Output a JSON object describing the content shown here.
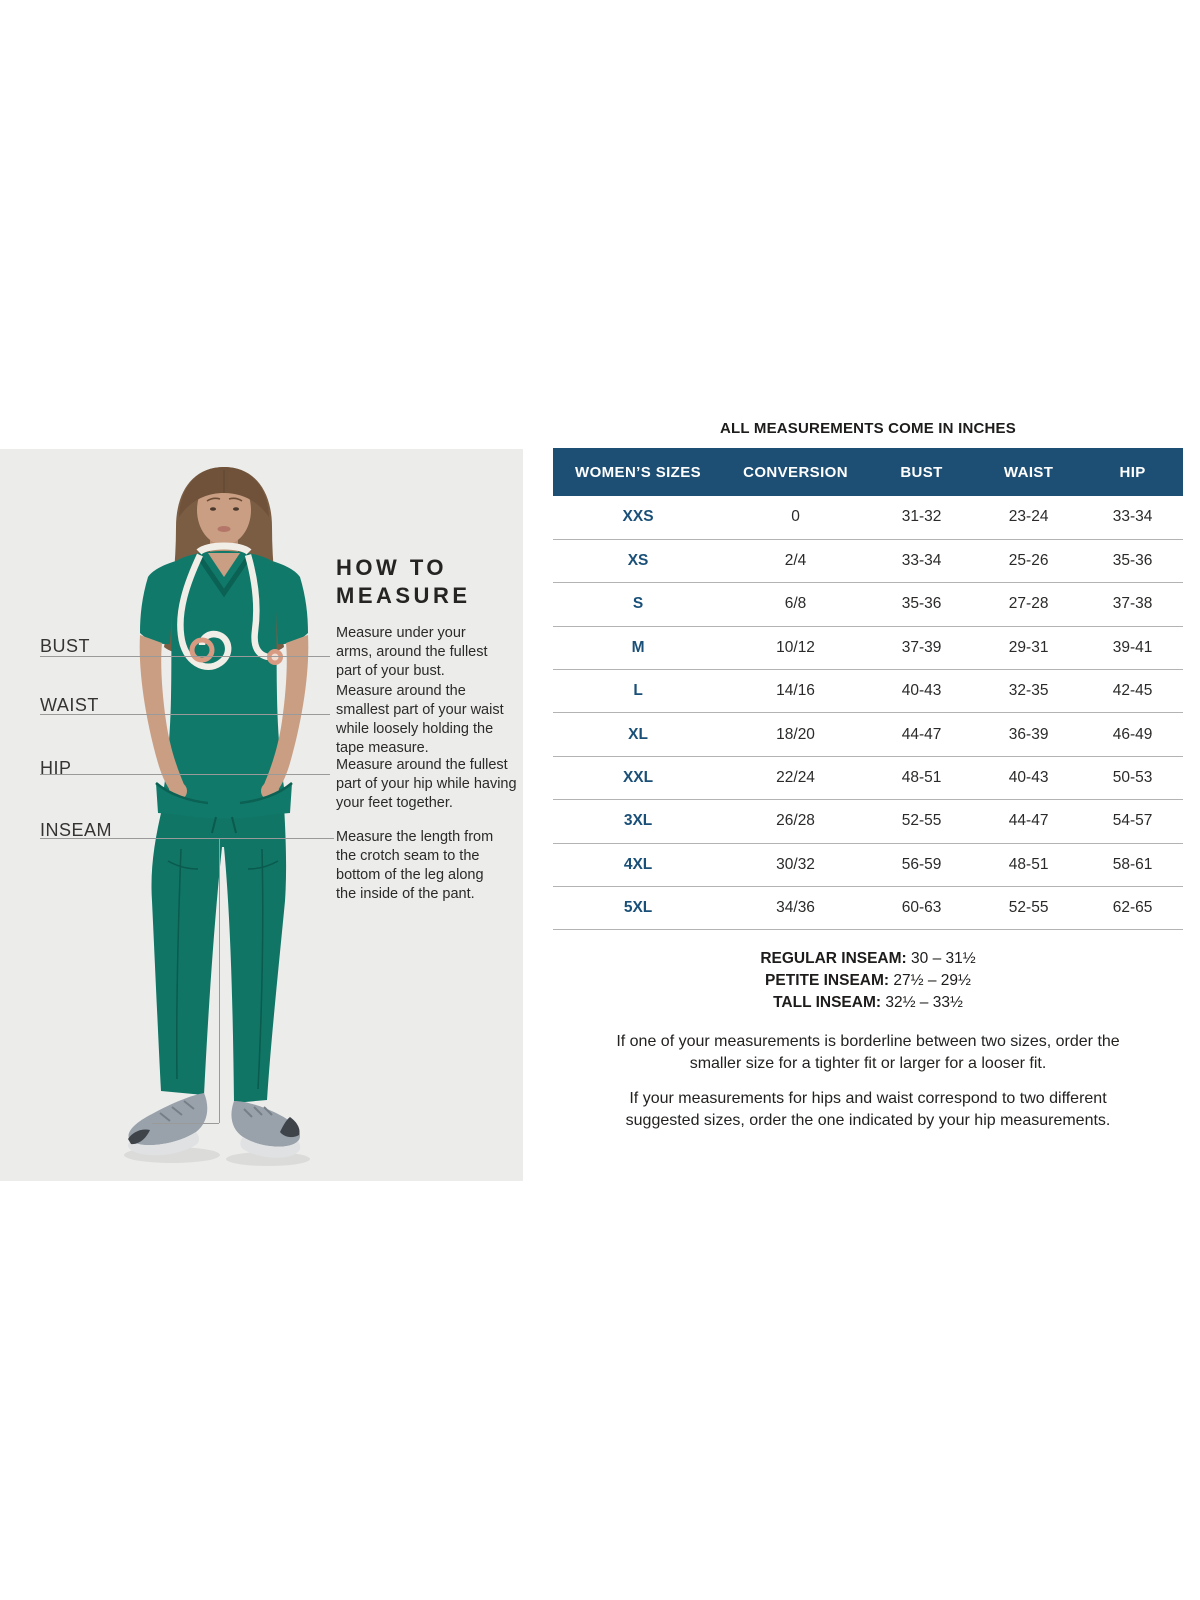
{
  "colors": {
    "header_bg": "#1d4e74",
    "size_label": "#1a5078",
    "panel_bg": "#ececeb",
    "scrub_teal": "#11796a",
    "body_text": "#2b2a29",
    "separator": "#b3b3b3",
    "line_gray": "#9a9a9a"
  },
  "measure_guide": {
    "heading": "HOW TO\nMEASURE",
    "points": [
      {
        "label": "BUST",
        "instruction": "Measure under your\narms, around the fullest\npart of your bust."
      },
      {
        "label": "WAIST",
        "instruction": "Measure around the\nsmallest part of your waist\nwhile loosely holding the\ntape measure."
      },
      {
        "label": "HIP",
        "instruction": "Measure around the fullest\npart of your hip while having\nyour feet together."
      },
      {
        "label": "INSEAM",
        "instruction": "Measure the length from\nthe crotch seam to the\nbottom of the leg along\nthe inside of the pant."
      }
    ]
  },
  "size_table": {
    "title": "ALL MEASUREMENTS COME IN INCHES",
    "columns": [
      "WOMEN’S SIZES",
      "CONVERSION",
      "BUST",
      "WAIST",
      "HIP"
    ],
    "rows": [
      {
        "size": "XXS",
        "conversion": "0",
        "bust": "31-32",
        "waist": "23-24",
        "hip": "33-34"
      },
      {
        "size": "XS",
        "conversion": "2/4",
        "bust": "33-34",
        "waist": "25-26",
        "hip": "35-36"
      },
      {
        "size": "S",
        "conversion": "6/8",
        "bust": "35-36",
        "waist": "27-28",
        "hip": "37-38"
      },
      {
        "size": "M",
        "conversion": "10/12",
        "bust": "37-39",
        "waist": "29-31",
        "hip": "39-41"
      },
      {
        "size": "L",
        "conversion": "14/16",
        "bust": "40-43",
        "waist": "32-35",
        "hip": "42-45"
      },
      {
        "size": "XL",
        "conversion": "18/20",
        "bust": "44-47",
        "waist": "36-39",
        "hip": "46-49"
      },
      {
        "size": "XXL",
        "conversion": "22/24",
        "bust": "48-51",
        "waist": "40-43",
        "hip": "50-53"
      },
      {
        "size": "3XL",
        "conversion": "26/28",
        "bust": "52-55",
        "waist": "44-47",
        "hip": "54-57"
      },
      {
        "size": "4XL",
        "conversion": "30/32",
        "bust": "56-59",
        "waist": "48-51",
        "hip": "58-61"
      },
      {
        "size": "5XL",
        "conversion": "34/36",
        "bust": "60-63",
        "waist": "52-55",
        "hip": "62-65"
      }
    ]
  },
  "inseams": [
    {
      "label": "REGULAR INSEAM:",
      "value": "30 – 31½"
    },
    {
      "label": "PETITE INSEAM:",
      "value": "27½ – 29½"
    },
    {
      "label": "TALL INSEAM:",
      "value": "32½ – 33½"
    }
  ],
  "notes": [
    "If one of your measurements is borderline between two sizes, order the\nsmaller size for a tighter fit or larger for a looser fit.",
    "If your measurements for hips and waist correspond to two different\nsuggested sizes, order the one indicated by your hip measurements."
  ]
}
